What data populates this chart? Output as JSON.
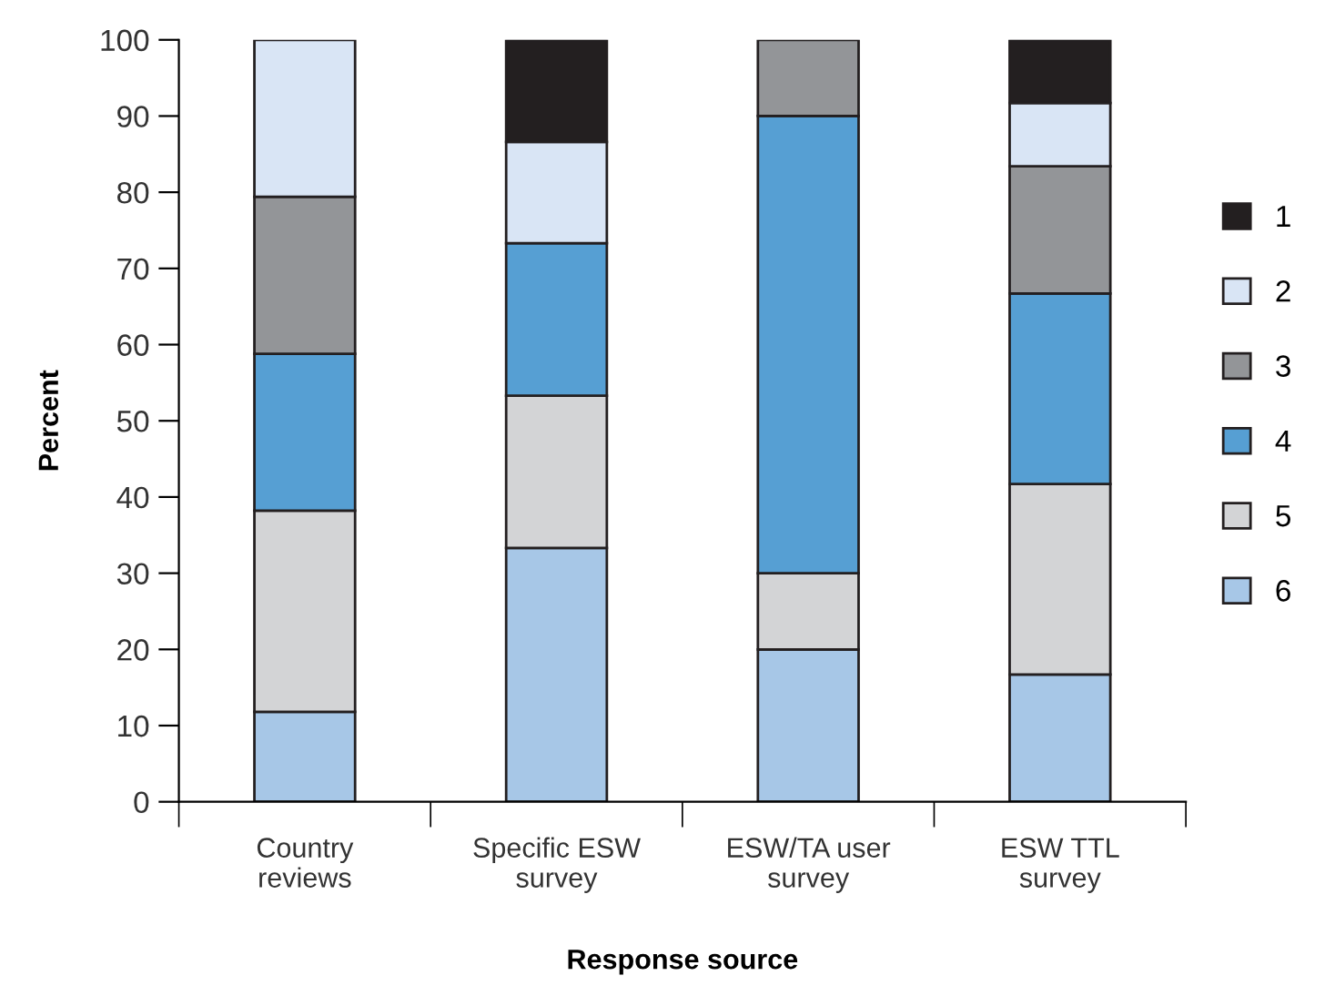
{
  "chart_data": {
    "type": "bar",
    "stacked": true,
    "xlabel": "Response source",
    "ylabel": "Percent",
    "categories": [
      "Country\nreviews",
      "Specific ESW\nsurvey",
      "ESW/TA user\nsurvey",
      "ESW TTL\nsurvey"
    ],
    "series": [
      {
        "name": "6",
        "color": "#a7c7e7",
        "values": [
          11.8,
          33.3,
          20,
          16.7
        ]
      },
      {
        "name": "5",
        "color": "#d3d4d6",
        "values": [
          26.4,
          20,
          10,
          25
        ]
      },
      {
        "name": "4",
        "color": "#569fd3",
        "values": [
          20.6,
          20,
          60,
          25
        ]
      },
      {
        "name": "3",
        "color": "#939598",
        "values": [
          20.6,
          null,
          10,
          16.7
        ]
      },
      {
        "name": "2",
        "color": "#d9e5f5",
        "values": [
          20.6,
          13.3,
          null,
          8.3
        ]
      },
      {
        "name": "1",
        "color": "#231f20",
        "values": [
          null,
          13.4,
          null,
          8.3
        ]
      }
    ],
    "ylim": [
      0,
      100
    ],
    "yticks": [
      0,
      10,
      20,
      30,
      40,
      50,
      60,
      70,
      80,
      90,
      100
    ],
    "grid": false,
    "legend": "right"
  }
}
